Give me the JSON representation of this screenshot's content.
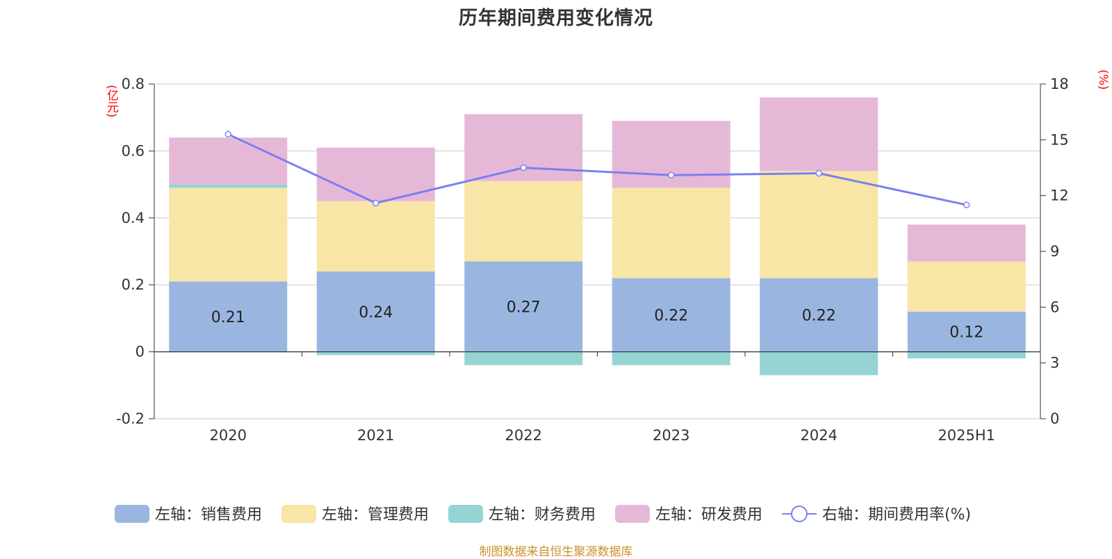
{
  "chart_data": {
    "type": "bar",
    "title": "历年期间费用变化情况",
    "y_left_unit": "(亿元)",
    "y_right_unit": "(%)",
    "categories": [
      "2020",
      "2021",
      "2022",
      "2023",
      "2024",
      "2025H1"
    ],
    "y_left_ticks": [
      "0.8",
      "0.6",
      "0.4",
      "0.2",
      "0",
      "-0.2"
    ],
    "y_right_ticks": [
      "18",
      "15",
      "12",
      "9",
      "6",
      "3",
      "0"
    ],
    "ylim_left": [
      -0.2,
      0.8
    ],
    "ylim_right": [
      0,
      18
    ],
    "grid": true,
    "stacked": true,
    "series": [
      {
        "name": "左轴：销售费用",
        "kind": "bar",
        "axis": "left",
        "color": "#9ab6e0",
        "values": [
          0.21,
          0.24,
          0.27,
          0.22,
          0.22,
          0.12
        ],
        "data_labels": [
          "0.21",
          "0.24",
          "0.27",
          "0.22",
          "0.22",
          "0.12"
        ]
      },
      {
        "name": "左轴：管理费用",
        "kind": "bar",
        "axis": "left",
        "color": "#f7e6a6",
        "values": [
          0.28,
          0.21,
          0.24,
          0.27,
          0.32,
          0.15
        ]
      },
      {
        "name": "左轴：财务费用",
        "kind": "bar",
        "axis": "left",
        "color": "#96d4d4",
        "values": [
          0.01,
          -0.01,
          -0.04,
          -0.04,
          -0.07,
          -0.02
        ]
      },
      {
        "name": "左轴：研发费用",
        "kind": "bar",
        "axis": "left",
        "color": "#e6b8d8",
        "values": [
          0.14,
          0.16,
          0.2,
          0.2,
          0.22,
          0.11
        ]
      },
      {
        "name": "右轴：期间费用率(%)",
        "kind": "line",
        "axis": "right",
        "color": "#7b7ff0",
        "values": [
          15.3,
          11.6,
          13.5,
          13.1,
          13.2,
          11.5
        ]
      }
    ]
  },
  "source_note": "制图数据来自恒生聚源数据库"
}
